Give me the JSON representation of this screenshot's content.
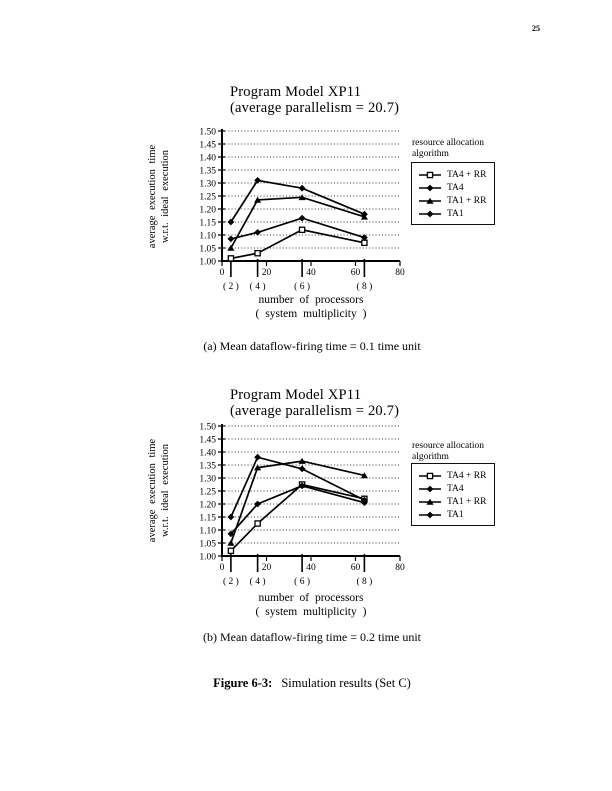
{
  "page_number": "25",
  "figure": {
    "label": "Figure 6-3:",
    "text": "Simulation results (Set C)"
  },
  "chart_data": [
    {
      "type": "line",
      "title": "Program Model XP11",
      "subtitle": "(average parallelism = 20.7)",
      "ylabel": [
        "average  execution  time",
        "w.r.t.  ideal  execution"
      ],
      "xlabel": [
        "number  of  processors",
        "( system  multiplicity )"
      ],
      "caption": "(a) Mean dataflow-firing time = 0.1 time unit",
      "legend_title": [
        "resource allocation",
        "algorithm"
      ],
      "legend_position": "right",
      "grid": "dotted",
      "xlim": [
        0,
        80
      ],
      "ylim": [
        1.0,
        1.5
      ],
      "x_ticks": [
        0,
        20,
        40,
        60,
        80
      ],
      "y_ticks": [
        1.0,
        1.05,
        1.1,
        1.15,
        1.2,
        1.25,
        1.3,
        1.35,
        1.4,
        1.45,
        1.5
      ],
      "multiplicity_marks": [
        {
          "x": 4,
          "label": "( 2 )"
        },
        {
          "x": 16,
          "label": "( 4 )"
        },
        {
          "x": 36,
          "label": "( 6 )"
        },
        {
          "x": 64,
          "label": "( 8 )"
        }
      ],
      "x": [
        4,
        16,
        36,
        64
      ],
      "series": [
        {
          "name": "TA4 + RR",
          "marker": "square-open",
          "values": [
            1.01,
            1.03,
            1.12,
            1.07
          ]
        },
        {
          "name": "TA4",
          "marker": "diamond",
          "values": [
            1.085,
            1.11,
            1.165,
            1.09
          ]
        },
        {
          "name": "TA1 + RR",
          "marker": "triangle",
          "values": [
            1.05,
            1.235,
            1.245,
            1.17
          ]
        },
        {
          "name": "TA1",
          "marker": "diamond",
          "values": [
            1.15,
            1.31,
            1.28,
            1.18
          ]
        }
      ]
    },
    {
      "type": "line",
      "title": "Program Model XP11",
      "subtitle": "(average parallelism = 20.7)",
      "ylabel": [
        "average  execution  time",
        "w.r.t.  ideal  execution"
      ],
      "xlabel": [
        "number  of  processors",
        "( system  multiplicity )"
      ],
      "caption": "(b) Mean dataflow-firing time = 0.2 time unit",
      "legend_title": [
        "resource allocation",
        "algorithm"
      ],
      "legend_position": "right",
      "grid": "dotted",
      "xlim": [
        0,
        80
      ],
      "ylim": [
        1.0,
        1.5
      ],
      "x_ticks": [
        0,
        20,
        40,
        60,
        80
      ],
      "y_ticks": [
        1.0,
        1.05,
        1.1,
        1.15,
        1.2,
        1.25,
        1.3,
        1.35,
        1.4,
        1.45,
        1.5
      ],
      "multiplicity_marks": [
        {
          "x": 4,
          "label": "( 2 )"
        },
        {
          "x": 16,
          "label": "( 4 )"
        },
        {
          "x": 36,
          "label": "( 6 )"
        },
        {
          "x": 64,
          "label": "( 8 )"
        }
      ],
      "x": [
        4,
        16,
        36,
        64
      ],
      "series": [
        {
          "name": "TA4 + RR",
          "marker": "square-open",
          "values": [
            1.02,
            1.125,
            1.275,
            1.22
          ]
        },
        {
          "name": "TA4",
          "marker": "diamond",
          "values": [
            1.085,
            1.2,
            1.27,
            1.205
          ]
        },
        {
          "name": "TA1 + RR",
          "marker": "triangle",
          "values": [
            1.05,
            1.34,
            1.365,
            1.31
          ]
        },
        {
          "name": "TA1",
          "marker": "diamond",
          "values": [
            1.15,
            1.38,
            1.335,
            1.215
          ]
        }
      ]
    }
  ]
}
